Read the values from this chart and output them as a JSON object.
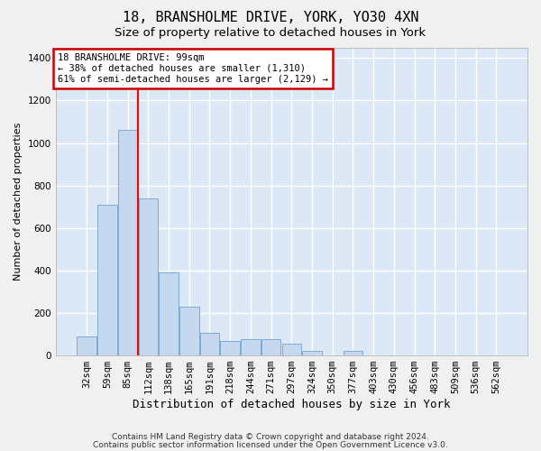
{
  "title1": "18, BRANSHOLME DRIVE, YORK, YO30 4XN",
  "title2": "Size of property relative to detached houses in York",
  "xlabel": "Distribution of detached houses by size in York",
  "ylabel": "Number of detached properties",
  "categories": [
    "32sqm",
    "59sqm",
    "85sqm",
    "112sqm",
    "138sqm",
    "165sqm",
    "191sqm",
    "218sqm",
    "244sqm",
    "271sqm",
    "297sqm",
    "324sqm",
    "350sqm",
    "377sqm",
    "403sqm",
    "430sqm",
    "456sqm",
    "483sqm",
    "509sqm",
    "536sqm",
    "562sqm"
  ],
  "values": [
    90,
    710,
    1060,
    740,
    390,
    230,
    105,
    70,
    75,
    75,
    55,
    20,
    0,
    20,
    0,
    0,
    0,
    0,
    0,
    0,
    0
  ],
  "bar_color": "#c5d8f0",
  "bar_edge_color": "#7aadd4",
  "bar_linewidth": 0.7,
  "red_line_x": 2.48,
  "ylim": [
    0,
    1450
  ],
  "yticks": [
    0,
    200,
    400,
    600,
    800,
    1000,
    1200,
    1400
  ],
  "annotation_text": "18 BRANSHOLME DRIVE: 99sqm\n← 38% of detached houses are smaller (1,310)\n61% of semi-detached houses are larger (2,129) →",
  "annotation_box_color": "#ffffff",
  "annotation_box_edge": "#cc0000",
  "footer1": "Contains HM Land Registry data © Crown copyright and database right 2024.",
  "footer2": "Contains public sector information licensed under the Open Government Licence v3.0.",
  "fig_bg": "#f0f0f0",
  "plot_bg": "#dce8f5",
  "grid_color": "#ffffff",
  "title1_fontsize": 11,
  "title2_fontsize": 9.5,
  "xlabel_fontsize": 9,
  "ylabel_fontsize": 8,
  "tick_fontsize": 7.5,
  "footer_fontsize": 6.5,
  "ann_fontsize": 7.5
}
